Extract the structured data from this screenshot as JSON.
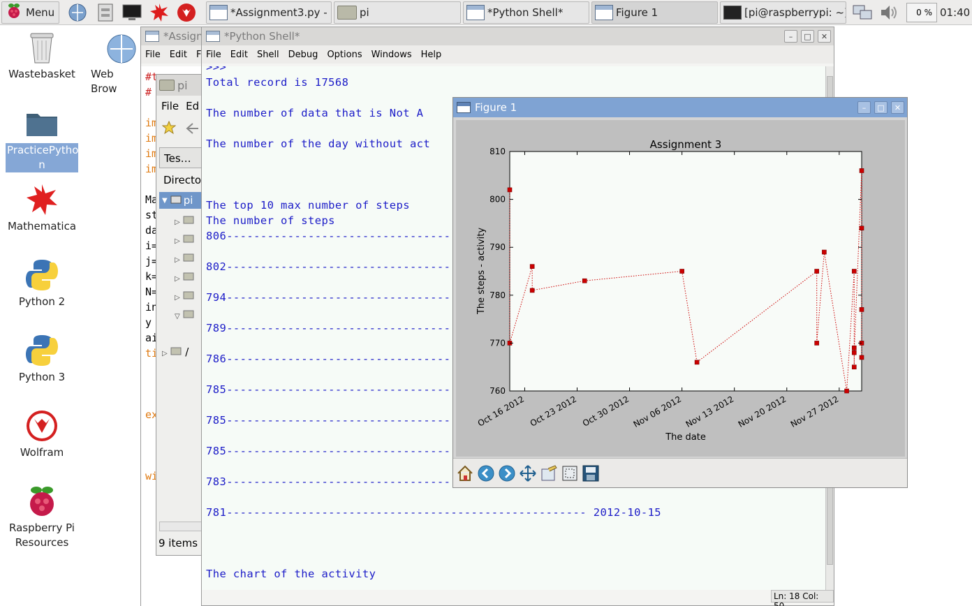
{
  "taskbar": {
    "menu_label": "Menu",
    "tasks": [
      {
        "label": "*Assignment3.py - …"
      },
      {
        "label": "pi"
      },
      {
        "label": "*Python Shell*"
      },
      {
        "label": "Figure 1"
      },
      {
        "label": "[pi@raspberrypi: ~]"
      }
    ],
    "cpu": "0 %",
    "clock": "01:40"
  },
  "desktop": {
    "icons": [
      {
        "label": "Wastebasket"
      },
      {
        "label": "Web Brow"
      },
      {
        "label": "PracticePytho\nn"
      },
      {
        "label": "Mathematica"
      },
      {
        "label": "Python 2"
      },
      {
        "label": "Python 3"
      },
      {
        "label": "Wolfram"
      },
      {
        "label": "Raspberry Pi\nResources"
      }
    ]
  },
  "editor": {
    "title": "*Assign",
    "menu": [
      "File",
      "Edit",
      "F"
    ],
    "code_fragments": [
      "#t",
      "#",
      "im",
      "im",
      "im",
      "im",
      "Ma",
      "st",
      "da",
      "i=",
      "j=",
      "k=",
      "N=",
      "in",
      "y",
      "ai",
      "ti",
      "ex",
      "wi"
    ]
  },
  "filemanager": {
    "title": "pi",
    "menu": [
      "File",
      "Ed"
    ],
    "tab": "Tes…",
    "directory_label": "Director",
    "tree_root": "pi",
    "tree_fs_root": "/",
    "status": "9 items ("
  },
  "shell": {
    "title": "*Python Shell*",
    "menu": [
      "File",
      "Edit",
      "Shell",
      "Debug",
      "Options",
      "Windows",
      "Help"
    ],
    "lines": [
      ">>>",
      "Total record is 17568",
      "The number of data that is Not A",
      "The number of the day without act",
      "The top 10 max number of steps",
      "The number of steps",
      "806-----------------------------------------",
      "802-----------------------------------------",
      "794-----------------------------------------",
      "789-----------------------------------------",
      "786-----------------------------------------",
      "785-----------------------------------------",
      "785-----------------------------------------",
      "785-----------------------------------------",
      "783-----------------------------------------",
      "781----------------------------------------------------- 2012-10-15",
      "The chart of the activity"
    ],
    "status": "Ln: 18 Col: 50"
  },
  "figure": {
    "title": "Figure 1",
    "toolbar": [
      "home-icon",
      "back-icon",
      "forward-icon",
      "pan-icon",
      "configure-icon",
      "zoom-icon",
      "save-icon"
    ]
  },
  "chart_data": {
    "type": "line",
    "title": "Assignment 3",
    "xlabel": "The date",
    "ylabel": "The steps - activity",
    "ylim": [
      760,
      810
    ],
    "xlim": [
      "2012-10-14",
      "2012-11-30"
    ],
    "yticks": [
      "810",
      "800",
      "790",
      "780",
      "770",
      "760"
    ],
    "xticks": [
      "Oct 16 2012",
      "Oct 23 2012",
      "Oct 30 2012",
      "Nov 06 2012",
      "Nov 13 2012",
      "Nov 20 2012",
      "Nov 27 2012"
    ],
    "series": [
      {
        "color": "#cc0000",
        "marker": "square",
        "linestyle": "dotted",
        "points": [
          [
            "2012-10-14",
            802
          ],
          [
            "2012-10-14",
            770
          ],
          [
            "2012-10-17",
            786
          ],
          [
            "2012-10-17",
            781
          ],
          [
            "2012-10-24",
            783
          ],
          [
            "2012-11-06",
            785
          ],
          [
            "2012-11-08",
            766
          ],
          [
            "2012-11-24",
            785
          ],
          [
            "2012-11-24",
            770
          ],
          [
            "2012-11-25",
            789
          ],
          [
            "2012-11-28",
            760
          ],
          [
            "2012-11-29",
            785
          ],
          [
            "2012-11-29",
            765
          ],
          [
            "2012-11-29",
            769
          ],
          [
            "2012-11-29",
            768
          ],
          [
            "2012-11-30",
            806
          ],
          [
            "2012-11-30",
            794
          ],
          [
            "2012-11-30",
            777
          ],
          [
            "2012-11-30",
            770
          ],
          [
            "2012-11-30",
            767
          ]
        ]
      }
    ]
  }
}
